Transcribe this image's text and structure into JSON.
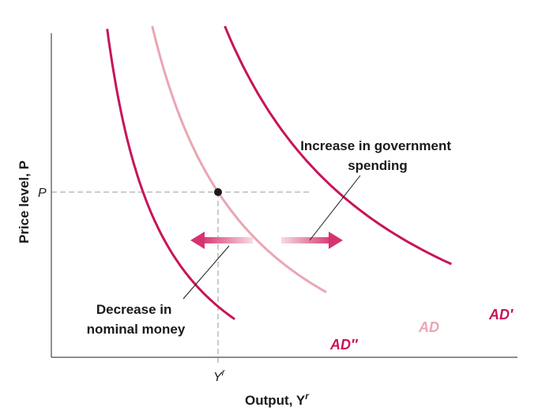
{
  "chart_data": {
    "type": "line",
    "xlabel": "Output, Y",
    "xlabel_sup": "r",
    "ylabel": "Price level, P",
    "equilibrium": {
      "x_label": "Y",
      "x_label_sup": "r",
      "y_label": "P"
    },
    "series": [
      {
        "name": "AD''",
        "display": "AD″",
        "color": "#c8145a",
        "k": 0.55,
        "x_start": 0.25,
        "x_end": 1.1,
        "label_pos": "bottom-right"
      },
      {
        "name": "AD",
        "display": "AD",
        "color": "#eba5b4",
        "k": 1.0,
        "x_start": 0.55,
        "x_end": 1.65,
        "label_pos": "bottom-right"
      },
      {
        "name": "AD'",
        "display": "AD′",
        "color": "#c8145a",
        "k": 1.72,
        "x_start": 0.95,
        "x_end": 2.4,
        "label_pos": "bottom-right"
      }
    ],
    "equilibrium_point": {
      "x": 1.0,
      "y": 1.0
    },
    "xlim": [
      0,
      2.6
    ],
    "ylim": [
      0.35,
      2.05
    ],
    "annotations": {
      "increase": [
        "Increase in government",
        "spending"
      ],
      "decrease": [
        "Decrease in",
        "nominal money"
      ]
    },
    "colors": {
      "dark": "#c8145a",
      "light": "#eba5b4",
      "axis": "#4a4a4a",
      "guide": "#9a9a9a"
    }
  }
}
